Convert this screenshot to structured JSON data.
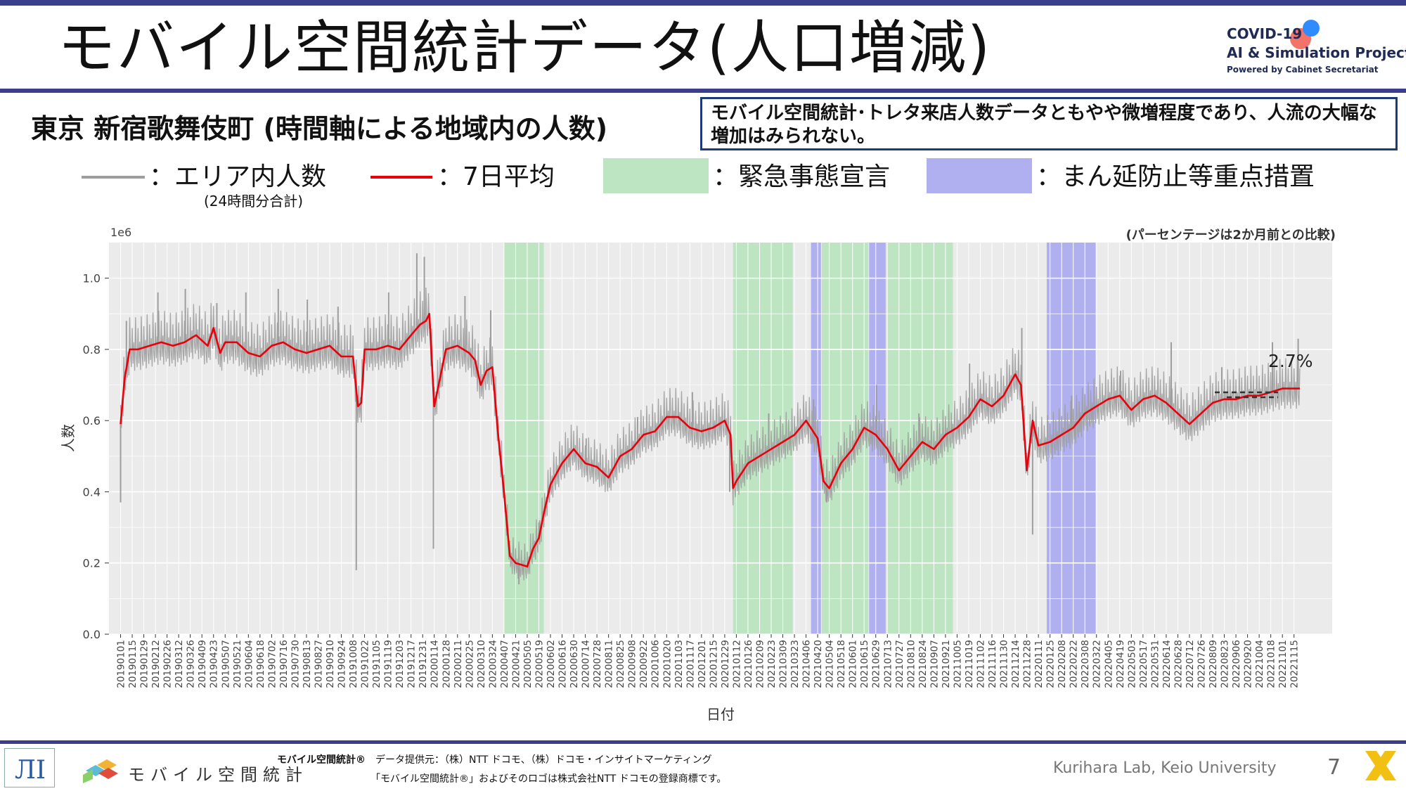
{
  "title": "モバイル空間統計データ(人口増減)",
  "logo": {
    "line1": "COVID-19",
    "line2": "AI & Simulation Project",
    "line3": "Powered by Cabinet Secretariat"
  },
  "subtitle": "東京 新宿歌舞伎町 (時間軸による地域内の人数)",
  "note": "モバイル空間統計･トレタ来店人数データともやや微増程度であり、人流の大幅な増加はみられない。",
  "legend": {
    "raw_label": "：エリア内人数",
    "raw_sub": "(24時間分合計)",
    "avg_label": "：7日平均",
    "emergency_label": "：緊急事態宣言",
    "semi_label": "：まん延防止等重点措置"
  },
  "colors": {
    "raw": "#9e9e9e",
    "avg": "#e8000b",
    "emergency": "#bde5c2",
    "semi": "#b0b0f0",
    "panel": "#ebebeb",
    "accent": "#3b3e8a"
  },
  "footer": {
    "logo_text": "モバイル空間統計",
    "brand": "モバイル空間統計®",
    "provider": "データ提供元：（株）NTT ドコモ、（株）ドコモ・インサイトマーケティング",
    "trademark": "「モバイル空間統計®」およびそのロゴは株式会社NTT ドコモの登録商標です。",
    "lab": "Kurihara Lab, Keio University",
    "page": "7"
  },
  "chart_data": {
    "type": "line",
    "xlabel": "日付",
    "ylabel": "人数",
    "scale_label": "1e6",
    "comparison_note": "(パーセンテージは2か月前との比較)",
    "annotation": "2.7%",
    "ylim": [
      0.0,
      1.1
    ],
    "yticks": [
      0.0,
      0.2,
      0.4,
      0.6,
      0.8,
      1.0
    ],
    "ytick_labels": [
      "0.0",
      "0.2",
      "0.4",
      "0.6",
      "0.8",
      "1.0"
    ],
    "xlim": [
      "2018-12-18",
      "2022-12-31"
    ],
    "xtick_labels": [
      "20190101",
      "20190115",
      "20190129",
      "20190212",
      "20190226",
      "20190312",
      "20190326",
      "20190409",
      "20190423",
      "20190507",
      "20190521",
      "20190604",
      "20190618",
      "20190702",
      "20190716",
      "20190730",
      "20190813",
      "20190827",
      "20190910",
      "20190924",
      "20191008",
      "20191022",
      "20191105",
      "20191119",
      "20191203",
      "20191217",
      "20191231",
      "20200114",
      "20200128",
      "20200211",
      "20200225",
      "20200310",
      "20200324",
      "20200407",
      "20200421",
      "20200505",
      "20200519",
      "20200602",
      "20200616",
      "20200630",
      "20200714",
      "20200728",
      "20200811",
      "20200825",
      "20200908",
      "20200922",
      "20201006",
      "20201020",
      "20201103",
      "20201117",
      "20201201",
      "20201215",
      "20201229",
      "20210112",
      "20210126",
      "20210209",
      "20210223",
      "20210309",
      "20210323",
      "20210406",
      "20210420",
      "20210504",
      "20210518",
      "20210601",
      "20210615",
      "20210629",
      "20210713",
      "20210727",
      "20210810",
      "20210824",
      "20210907",
      "20210921",
      "20211005",
      "20211019",
      "20211102",
      "20211116",
      "20211130",
      "20211214",
      "20211228",
      "20220111",
      "20220125",
      "20220208",
      "20220222",
      "20220308",
      "20220322",
      "20220405",
      "20220419",
      "20220503",
      "20220517",
      "20220531",
      "20220614",
      "20220628",
      "20220712",
      "20220726",
      "20220809",
      "20220823",
      "20220906",
      "20220920",
      "20221004",
      "20221018",
      "20221101",
      "20221115"
    ],
    "emergency_periods": [
      [
        "2020-04-07",
        "2020-05-25"
      ],
      [
        "2021-01-08",
        "2021-03-21"
      ],
      [
        "2021-04-25",
        "2021-06-20"
      ],
      [
        "2021-07-12",
        "2021-09-30"
      ]
    ],
    "semi_periods": [
      [
        "2021-04-12",
        "2021-04-24"
      ],
      [
        "2021-06-21",
        "2021-07-11"
      ],
      [
        "2022-01-21",
        "2022-03-21"
      ]
    ],
    "series": [
      {
        "label": "7-day average",
        "dates": [
          "2019-01-01",
          "2019-01-06",
          "2019-01-12",
          "2019-01-22",
          "2019-02-05",
          "2019-02-19",
          "2019-03-05",
          "2019-03-19",
          "2019-04-02",
          "2019-04-16",
          "2019-04-23",
          "2019-05-01",
          "2019-05-07",
          "2019-05-21",
          "2019-06-04",
          "2019-06-18",
          "2019-07-02",
          "2019-07-16",
          "2019-07-30",
          "2019-08-13",
          "2019-08-27",
          "2019-09-10",
          "2019-09-24",
          "2019-10-08",
          "2019-10-14",
          "2019-10-18",
          "2019-10-22",
          "2019-11-05",
          "2019-11-19",
          "2019-12-03",
          "2019-12-17",
          "2019-12-28",
          "2020-01-04",
          "2020-01-08",
          "2020-01-14",
          "2020-01-28",
          "2020-02-11",
          "2020-02-25",
          "2020-03-03",
          "2020-03-10",
          "2020-03-17",
          "2020-03-24",
          "2020-03-31",
          "2020-04-07",
          "2020-04-14",
          "2020-04-21",
          "2020-05-05",
          "2020-05-12",
          "2020-05-19",
          "2020-05-26",
          "2020-06-02",
          "2020-06-16",
          "2020-06-30",
          "2020-07-14",
          "2020-07-28",
          "2020-08-11",
          "2020-08-25",
          "2020-09-08",
          "2020-09-22",
          "2020-10-06",
          "2020-10-20",
          "2020-11-03",
          "2020-11-17",
          "2020-12-01",
          "2020-12-15",
          "2020-12-29",
          "2021-01-05",
          "2021-01-08",
          "2021-01-12",
          "2021-01-26",
          "2021-02-09",
          "2021-02-23",
          "2021-03-09",
          "2021-03-23",
          "2021-04-06",
          "2021-04-20",
          "2021-04-27",
          "2021-05-04",
          "2021-05-18",
          "2021-06-01",
          "2021-06-15",
          "2021-06-29",
          "2021-07-13",
          "2021-07-27",
          "2021-08-10",
          "2021-08-24",
          "2021-09-07",
          "2021-09-21",
          "2021-10-05",
          "2021-10-19",
          "2021-11-02",
          "2021-11-16",
          "2021-11-30",
          "2021-12-14",
          "2021-12-21",
          "2021-12-28",
          "2022-01-04",
          "2022-01-11",
          "2022-01-25",
          "2022-02-08",
          "2022-02-22",
          "2022-03-08",
          "2022-03-22",
          "2022-04-05",
          "2022-04-19",
          "2022-05-03",
          "2022-05-17",
          "2022-05-31",
          "2022-06-14",
          "2022-06-28",
          "2022-07-12",
          "2022-07-26",
          "2022-08-09",
          "2022-08-23",
          "2022-09-06",
          "2022-09-20",
          "2022-10-04",
          "2022-10-18",
          "2022-11-01",
          "2022-11-15",
          "2022-11-22"
        ],
        "values": [
          0.59,
          0.72,
          0.8,
          0.8,
          0.81,
          0.82,
          0.81,
          0.82,
          0.84,
          0.81,
          0.86,
          0.79,
          0.82,
          0.82,
          0.79,
          0.78,
          0.81,
          0.82,
          0.8,
          0.79,
          0.8,
          0.81,
          0.78,
          0.78,
          0.64,
          0.65,
          0.8,
          0.8,
          0.81,
          0.8,
          0.84,
          0.87,
          0.88,
          0.9,
          0.64,
          0.8,
          0.81,
          0.79,
          0.77,
          0.7,
          0.74,
          0.75,
          0.56,
          0.4,
          0.22,
          0.2,
          0.19,
          0.24,
          0.27,
          0.35,
          0.42,
          0.48,
          0.52,
          0.48,
          0.47,
          0.44,
          0.5,
          0.52,
          0.56,
          0.57,
          0.61,
          0.61,
          0.58,
          0.57,
          0.58,
          0.6,
          0.56,
          0.41,
          0.43,
          0.48,
          0.5,
          0.52,
          0.54,
          0.56,
          0.6,
          0.55,
          0.43,
          0.41,
          0.48,
          0.52,
          0.58,
          0.56,
          0.52,
          0.46,
          0.5,
          0.54,
          0.52,
          0.56,
          0.58,
          0.61,
          0.66,
          0.64,
          0.67,
          0.73,
          0.7,
          0.46,
          0.6,
          0.53,
          0.54,
          0.56,
          0.58,
          0.62,
          0.64,
          0.66,
          0.67,
          0.63,
          0.66,
          0.67,
          0.65,
          0.62,
          0.59,
          0.62,
          0.65,
          0.66,
          0.66,
          0.67,
          0.67,
          0.68,
          0.69,
          0.69,
          0.69
        ]
      },
      {
        "label": "daily total",
        "dates": [
          "2019-01-01",
          "2019-01-08",
          "2019-02-15",
          "2019-03-20",
          "2019-04-27",
          "2019-06-01",
          "2019-07-10",
          "2019-08-14",
          "2019-09-20",
          "2019-10-12",
          "2019-11-20",
          "2019-12-24",
          "2020-01-02",
          "2020-01-13",
          "2020-02-20",
          "2020-03-22",
          "2020-04-25",
          "2020-05-20",
          "2020-07-15",
          "2020-09-15",
          "2020-11-20",
          "2021-01-04",
          "2021-02-20",
          "2021-04-15",
          "2021-05-01",
          "2021-06-30",
          "2021-08-20",
          "2021-10-20",
          "2021-12-22",
          "2022-01-04",
          "2022-02-20",
          "2022-04-20",
          "2022-06-20",
          "2022-08-20",
          "2022-10-20",
          "2022-11-20"
        ],
        "values": [
          0.37,
          0.88,
          0.96,
          0.97,
          0.93,
          0.96,
          0.97,
          0.94,
          0.92,
          0.18,
          0.96,
          1.07,
          1.06,
          0.24,
          0.95,
          0.91,
          0.14,
          0.32,
          0.55,
          0.61,
          0.68,
          0.4,
          0.62,
          0.66,
          0.37,
          0.7,
          0.62,
          0.76,
          0.86,
          0.28,
          0.67,
          0.74,
          0.82,
          0.75,
          0.82,
          0.83
        ]
      }
    ]
  }
}
